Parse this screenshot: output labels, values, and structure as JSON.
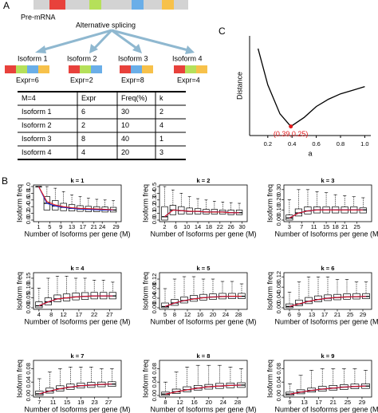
{
  "panel_labels": [
    "A",
    "B",
    "C"
  ],
  "panel_a": {
    "pre_mrna": "Pre-mRNA",
    "splicing": "Alternative splicing",
    "isoforms": [
      {
        "name": "Isoform 1",
        "expr": "Expr=6"
      },
      {
        "name": "Isoform 2",
        "expr": "Expr=2"
      },
      {
        "name": "Isoform 3",
        "expr": "Expr=8"
      },
      {
        "name": "Isoform 4",
        "expr": "Expr=4"
      }
    ],
    "table": {
      "header": [
        "M=4",
        "Expr",
        "Freq(%)",
        "k"
      ],
      "rows": [
        [
          "Isoform 1",
          6,
          30,
          2
        ],
        [
          "Isoform 2",
          2,
          10,
          4
        ],
        [
          "Isoform 3",
          8,
          40,
          1
        ],
        [
          "Isoform 4",
          4,
          20,
          3
        ]
      ]
    }
  },
  "chart_data": [
    {
      "type": "line",
      "x_label": "a",
      "y_label": "Distance",
      "color": "#000000",
      "x": [
        0.12,
        0.2,
        0.3,
        0.39,
        0.5,
        0.6,
        0.7,
        0.8,
        0.9,
        1.0
      ],
      "values": [
        0.68,
        0.48,
        0.32,
        0.25,
        0.3,
        0.36,
        0.4,
        0.43,
        0.45,
        0.47
      ],
      "xlim": [
        0.05,
        1.05
      ],
      "ylim": [
        0.2,
        0.75
      ],
      "xticks": [
        0.2,
        0.4,
        0.6,
        0.8,
        {
          "value": 1,
          "label": "1.0"
        }
      ],
      "point": {
        "x": 0.39,
        "y": 0.25,
        "label": "(0.39,0.25)",
        "color": "#e41a1c"
      }
    },
    {
      "type": "box",
      "title": "k = 1",
      "x_label": "Number of Isoforms per gene (M)",
      "y_label": "Isoform freq",
      "x": [
        1,
        4,
        7,
        10,
        13,
        16,
        19,
        22,
        25,
        28
      ],
      "q1": [
        1,
        0.3,
        0.3,
        0.28,
        0.27,
        0.26,
        0.25,
        0.25,
        0.24,
        0.24
      ],
      "median": [
        1,
        0.5,
        0.42,
        0.38,
        0.35,
        0.33,
        0.32,
        0.31,
        0.3,
        0.3
      ],
      "q3": [
        1,
        0.7,
        0.58,
        0.5,
        0.46,
        0.43,
        0.41,
        0.4,
        0.39,
        0.38
      ],
      "whisker_high": [
        1,
        1,
        0.95,
        0.85,
        0.75,
        0.7,
        0.65,
        0.62,
        0.6,
        0.58
      ],
      "expected": [
        1,
        0.55,
        0.45,
        0.4,
        0.37,
        0.35,
        0.34,
        0.33,
        0.32,
        0.31
      ],
      "median_color": "#1f2fd0",
      "expected_color": "#e41a1c",
      "xlim": [
        0,
        30
      ],
      "ylim": [
        0,
        1
      ],
      "xticks": [
        1,
        5,
        9,
        13,
        17,
        21,
        24,
        29
      ],
      "yticks": [
        {
          "value": 0,
          "label": "0.0"
        },
        0.2,
        0.4,
        0.6,
        0.8,
        {
          "value": 1,
          "label": "1.0"
        }
      ]
    },
    {
      "type": "box",
      "title": "k = 2",
      "x_label": "Number of Isoforms per gene (M)",
      "y_label": "Isoform freq",
      "x": [
        2,
        5,
        8,
        11,
        14,
        17,
        20,
        23,
        26,
        29
      ],
      "q1": [
        0,
        0.08,
        0.09,
        0.09,
        0.09,
        0.09,
        0.09,
        0.09,
        0.08,
        0.08
      ],
      "median": [
        0.05,
        0.15,
        0.14,
        0.13,
        0.13,
        0.12,
        0.12,
        0.12,
        0.11,
        0.11
      ],
      "q3": [
        0.2,
        0.22,
        0.2,
        0.18,
        0.17,
        0.16,
        0.16,
        0.15,
        0.15,
        0.15
      ],
      "whisker_high": [
        0.5,
        0.45,
        0.4,
        0.35,
        0.32,
        0.3,
        0.28,
        0.27,
        0.26,
        0.25
      ],
      "expected": [
        0.05,
        0.15,
        0.14,
        0.13,
        0.13,
        0.12,
        0.12,
        0.12,
        0.11,
        0.11
      ],
      "median_color": "#1f2fd0",
      "expected_color": "#e41a1c",
      "xlim": [
        1,
        31
      ],
      "ylim": [
        0,
        0.5
      ],
      "xticks": [
        2,
        6,
        10,
        14,
        18,
        22,
        26,
        30
      ],
      "yticks": [
        {
          "value": 0,
          "label": "0.0"
        },
        0.1,
        0.2,
        0.3,
        0.4,
        0.5
      ]
    },
    {
      "type": "box",
      "title": "k = 3",
      "x_label": "Number of Isoforms per gene (M)",
      "y_label": "Isoform freq",
      "x": [
        3,
        6,
        9,
        12,
        15,
        18,
        21,
        24,
        27
      ],
      "q1": [
        0,
        0.04,
        0.06,
        0.07,
        0.07,
        0.07,
        0.07,
        0.07,
        0.07
      ],
      "median": [
        0.02,
        0.07,
        0.09,
        0.1,
        0.1,
        0.1,
        0.1,
        0.1,
        0.1
      ],
      "q3": [
        0.05,
        0.11,
        0.13,
        0.13,
        0.13,
        0.13,
        0.13,
        0.13,
        0.12
      ],
      "whisker_high": [
        0.2,
        0.3,
        0.3,
        0.28,
        0.27,
        0.25,
        0.24,
        0.23,
        0.22
      ],
      "expected": [
        0.02,
        0.07,
        0.09,
        0.1,
        0.1,
        0.1,
        0.1,
        0.1,
        0.1
      ],
      "median_color": "#1f2fd0",
      "expected_color": "#e41a1c",
      "xlim": [
        2,
        29
      ],
      "ylim": [
        0,
        0.33
      ],
      "xticks": [
        3,
        7,
        11,
        15,
        18,
        21,
        25
      ],
      "yticks": [
        {
          "value": 0,
          "label": "0.00"
        },
        {
          "value": 0.1,
          "label": "0.10"
        },
        {
          "value": 0.2,
          "label": "0.20"
        },
        {
          "value": 0.3,
          "label": "0.30"
        }
      ]
    },
    {
      "type": "box",
      "title": "k = 4",
      "x_label": "Number of Isoforms per gene (M)",
      "y_label": "Isoform freq",
      "x": [
        4,
        7,
        10,
        13,
        16,
        19,
        22,
        25,
        28
      ],
      "q1": [
        0,
        0.015,
        0.03,
        0.035,
        0.04,
        0.042,
        0.045,
        0.045,
        0.045
      ],
      "median": [
        0.01,
        0.03,
        0.045,
        0.05,
        0.055,
        0.058,
        0.06,
        0.06,
        0.06
      ],
      "q3": [
        0.03,
        0.05,
        0.065,
        0.07,
        0.075,
        0.077,
        0.078,
        0.078,
        0.078
      ],
      "whisker_high": [
        0.1,
        0.15,
        0.16,
        0.16,
        0.15,
        0.15,
        0.14,
        0.14,
        0.13
      ],
      "expected": [
        0.01,
        0.03,
        0.045,
        0.05,
        0.055,
        0.058,
        0.06,
        0.06,
        0.06
      ],
      "median_color": "#1f2fd0",
      "expected_color": "#e41a1c",
      "xlim": [
        3,
        30
      ],
      "ylim": [
        0,
        0.17
      ],
      "xticks": [
        4,
        8,
        12,
        17,
        22,
        27
      ],
      "yticks": [
        {
          "value": 0,
          "label": "0.00"
        },
        0.05,
        {
          "value": 0.1,
          "label": "0.10"
        },
        0.15
      ]
    },
    {
      "type": "box",
      "title": "k = 5",
      "x_label": "Number of Isoforms per gene (M)",
      "y_label": "Isoform freq",
      "x": [
        5,
        8,
        11,
        14,
        17,
        20,
        23,
        26,
        29
      ],
      "q1": [
        0,
        0.01,
        0.02,
        0.027,
        0.032,
        0.035,
        0.037,
        0.038,
        0.038
      ],
      "median": [
        0.005,
        0.02,
        0.03,
        0.037,
        0.042,
        0.045,
        0.047,
        0.048,
        0.048
      ],
      "q3": [
        0.02,
        0.035,
        0.045,
        0.052,
        0.056,
        0.058,
        0.06,
        0.06,
        0.06
      ],
      "whisker_high": [
        0.08,
        0.12,
        0.13,
        0.13,
        0.12,
        0.12,
        0.11,
        0.11,
        0.1
      ],
      "expected": [
        0.005,
        0.02,
        0.03,
        0.037,
        0.042,
        0.045,
        0.047,
        0.048,
        0.048
      ],
      "median_color": "#1f2fd0",
      "expected_color": "#e41a1c",
      "xlim": [
        4,
        30
      ],
      "ylim": [
        0,
        0.14
      ],
      "xticks": [
        5,
        8,
        12,
        16,
        20,
        24,
        28
      ],
      "yticks": [
        {
          "value": 0,
          "label": "0.00"
        },
        0.04,
        0.08,
        0.12
      ]
    },
    {
      "type": "box",
      "title": "k = 6",
      "x_label": "Number of Isoforms per gene (M)",
      "y_label": "Isoform freq",
      "x": [
        6,
        9,
        12,
        15,
        18,
        21,
        24,
        27,
        30
      ],
      "q1": [
        0,
        0.008,
        0.016,
        0.023,
        0.028,
        0.031,
        0.033,
        0.034,
        0.035
      ],
      "median": [
        0.005,
        0.015,
        0.025,
        0.032,
        0.037,
        0.04,
        0.042,
        0.043,
        0.044
      ],
      "q3": [
        0.015,
        0.03,
        0.04,
        0.046,
        0.05,
        0.052,
        0.054,
        0.055,
        0.055
      ],
      "whisker_high": [
        0.06,
        0.1,
        0.12,
        0.12,
        0.12,
        0.11,
        0.11,
        0.1,
        0.1
      ],
      "expected": [
        0.005,
        0.015,
        0.025,
        0.032,
        0.037,
        0.04,
        0.042,
        0.043,
        0.044
      ],
      "median_color": "#1f2fd0",
      "expected_color": "#e41a1c",
      "xlim": [
        5,
        31
      ],
      "ylim": [
        0,
        0.13
      ],
      "xticks": [
        6,
        9,
        13,
        17,
        21,
        25,
        29
      ],
      "yticks": [
        {
          "value": 0,
          "label": "0.00"
        },
        0.04,
        0.08,
        0.12
      ]
    },
    {
      "type": "box",
      "title": "k = 7",
      "x_label": "Number of Isoforms per gene (M)",
      "y_label": "Isoform freq",
      "x": [
        7,
        10,
        13,
        16,
        19,
        22,
        25,
        28
      ],
      "q1": [
        0,
        0.007,
        0.013,
        0.018,
        0.022,
        0.024,
        0.026,
        0.027
      ],
      "median": [
        0.005,
        0.013,
        0.02,
        0.025,
        0.029,
        0.031,
        0.033,
        0.034
      ],
      "q3": [
        0.013,
        0.022,
        0.029,
        0.034,
        0.037,
        0.039,
        0.04,
        0.041
      ],
      "whisker_high": [
        0.05,
        0.07,
        0.08,
        0.085,
        0.085,
        0.085,
        0.08,
        0.08
      ],
      "expected": [
        0.005,
        0.013,
        0.02,
        0.025,
        0.029,
        0.031,
        0.033,
        0.034
      ],
      "median_color": "#1f2fd0",
      "expected_color": "#e41a1c",
      "xlim": [
        6,
        30
      ],
      "ylim": [
        0,
        0.1
      ],
      "xticks": [
        7,
        11,
        15,
        19,
        23,
        27
      ],
      "yticks": [
        {
          "value": 0,
          "label": "0.00"
        },
        0.04,
        0.08
      ]
    },
    {
      "type": "box",
      "title": "k = 8",
      "x_label": "Number of Isoforms per gene (M)",
      "y_label": "Isoform freq",
      "x": [
        8,
        11,
        14,
        17,
        20,
        23,
        26,
        29
      ],
      "q1": [
        0,
        0.006,
        0.011,
        0.016,
        0.019,
        0.021,
        0.023,
        0.024
      ],
      "median": [
        0.004,
        0.011,
        0.017,
        0.022,
        0.026,
        0.028,
        0.03,
        0.031
      ],
      "q3": [
        0.01,
        0.019,
        0.026,
        0.03,
        0.033,
        0.036,
        0.037,
        0.038
      ],
      "whisker_high": [
        0.04,
        0.07,
        0.085,
        0.09,
        0.09,
        0.09,
        0.085,
        0.08
      ],
      "expected": [
        0.004,
        0.011,
        0.017,
        0.022,
        0.026,
        0.028,
        0.03,
        0.031
      ],
      "median_color": "#1f2fd0",
      "expected_color": "#e41a1c",
      "xlim": [
        7,
        30
      ],
      "ylim": [
        0,
        0.1
      ],
      "xticks": [
        8,
        12,
        16,
        20,
        24,
        28
      ],
      "yticks": [
        {
          "value": 0,
          "label": "0.00"
        },
        0.04,
        0.08
      ]
    },
    {
      "type": "box",
      "title": "k = 9",
      "x_label": "Number of Isoforms per gene (M)",
      "y_label": "Isoform freq",
      "x": [
        9,
        12,
        15,
        18,
        21,
        24,
        27,
        30
      ],
      "q1": [
        0,
        0.005,
        0.01,
        0.013,
        0.016,
        0.018,
        0.02,
        0.021
      ],
      "median": [
        0.004,
        0.01,
        0.015,
        0.019,
        0.022,
        0.025,
        0.027,
        0.028
      ],
      "q3": [
        0.01,
        0.017,
        0.022,
        0.027,
        0.03,
        0.032,
        0.034,
        0.035
      ],
      "whisker_high": [
        0.035,
        0.06,
        0.075,
        0.08,
        0.08,
        0.08,
        0.08,
        0.075
      ],
      "expected": [
        0.004,
        0.01,
        0.015,
        0.019,
        0.022,
        0.025,
        0.027,
        0.028
      ],
      "median_color": "#1f2fd0",
      "expected_color": "#e41a1c",
      "xlim": [
        8,
        31
      ],
      "ylim": [
        0,
        0.1
      ],
      "xticks": [
        9,
        13,
        17,
        21,
        25,
        29
      ],
      "yticks": [
        {
          "value": 0,
          "label": "0.00"
        },
        0.04,
        0.08
      ]
    }
  ]
}
